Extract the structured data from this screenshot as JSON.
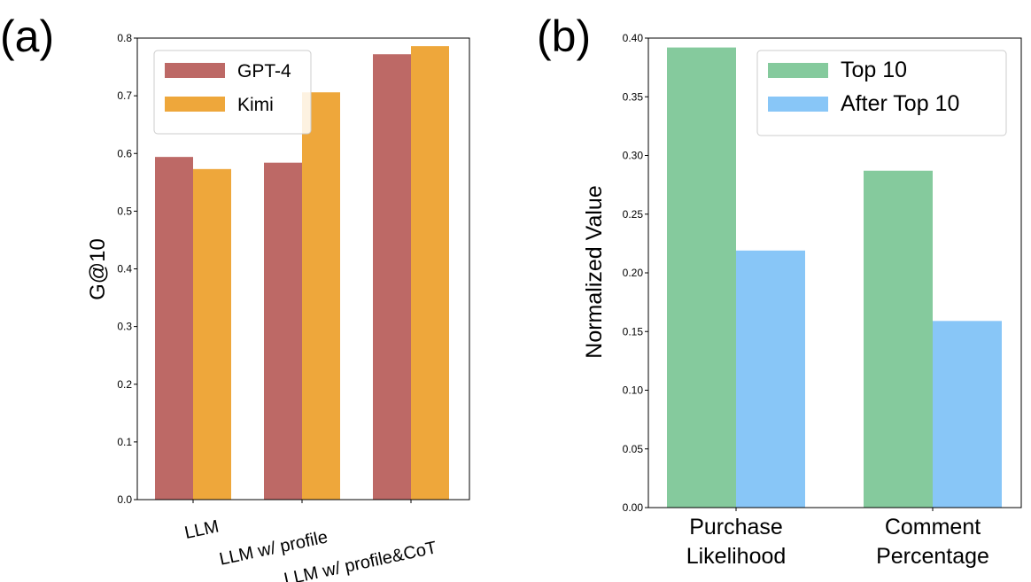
{
  "chart_data": [
    {
      "panel_label": "(a)",
      "type": "bar",
      "title": "",
      "xlabel": "",
      "ylabel": "G@10",
      "ylim": [
        0,
        0.8
      ],
      "yticks": [
        "0.0",
        "0.1",
        "0.2",
        "0.3",
        "0.4",
        "0.5",
        "0.6",
        "0.7",
        "0.8"
      ],
      "categories": [
        "LLM",
        "LLM w/ profile",
        "LLM w/ profile&CoT"
      ],
      "series": [
        {
          "name": "GPT-4",
          "color": "#bd6966",
          "values": [
            0.594,
            0.584,
            0.772
          ]
        },
        {
          "name": "Kimi",
          "color": "#eea73b",
          "values": [
            0.573,
            0.706,
            0.786
          ]
        }
      ],
      "legend": "top-left",
      "grid": false
    },
    {
      "panel_label": "(b)",
      "type": "bar",
      "title": "",
      "xlabel": "",
      "ylabel": "Normalized Value",
      "ylim": [
        0,
        0.4
      ],
      "yticks": [
        "0.00",
        "0.05",
        "0.10",
        "0.15",
        "0.20",
        "0.25",
        "0.30",
        "0.35",
        "0.40"
      ],
      "categories": [
        [
          "Purchase",
          "Likelihood"
        ],
        [
          "Comment",
          "Percentage"
        ]
      ],
      "series": [
        {
          "name": "Top 10",
          "color": "#85ca9d",
          "values": [
            0.392,
            0.287
          ]
        },
        {
          "name": "After Top 10",
          "color": "#88c6f7",
          "values": [
            0.219,
            0.159
          ]
        }
      ],
      "legend": "top-right",
      "grid": false
    }
  ]
}
